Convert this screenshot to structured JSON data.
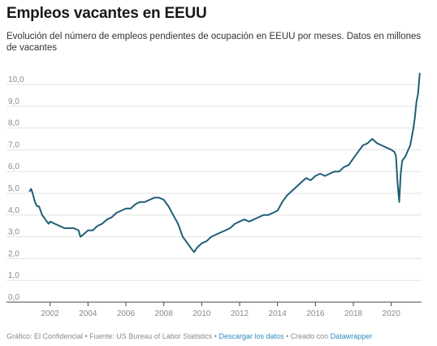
{
  "title": "Empleos vacantes en EEUU",
  "subtitle": "Evolución del número de empleos pendientes de ocupación en EEUU por meses. Datos en millones de vacantes",
  "footer": {
    "credit": "Gráfico: El Confidencial",
    "sep1": " • ",
    "source": "Fuente: US Bureau of Labor Statistics",
    "sep2": " • ",
    "download": "Descargar los datos",
    "sep3": " • ",
    "created": "Creado con ",
    "tool": "Datawrapper"
  },
  "chart_data": {
    "type": "line",
    "title": "Empleos vacantes en EEUU",
    "xlabel": "",
    "ylabel": "",
    "xlim": [
      2000.9,
      2021.6
    ],
    "ylim": [
      0,
      10
    ],
    "y_ticks": [
      "0,0",
      "1,0",
      "2,0",
      "3,0",
      "4,0",
      "5,0",
      "6,0",
      "7,0",
      "8,0",
      "9,0",
      "10,0"
    ],
    "y_tick_values": [
      0,
      1,
      2,
      3,
      4,
      5,
      6,
      7,
      8,
      9,
      10
    ],
    "x_ticks": [
      "2002",
      "2004",
      "2006",
      "2008",
      "2010",
      "2012",
      "2014",
      "2016",
      "2018",
      "2020"
    ],
    "x_tick_values": [
      2002,
      2004,
      2006,
      2008,
      2010,
      2012,
      2014,
      2016,
      2018,
      2020
    ],
    "grid": true,
    "line_color": "#1f5f77",
    "series": [
      {
        "x": [
          2000.92,
          2001.0,
          2001.08,
          2001.17,
          2001.25,
          2001.33,
          2001.42,
          2001.5,
          2001.58,
          2001.67,
          2001.75,
          2001.83,
          2001.92,
          2002.0,
          2002.25,
          2002.5,
          2002.75,
          2003.0,
          2003.25,
          2003.5,
          2003.6,
          2003.75,
          2004.0,
          2004.25,
          2004.5,
          2004.75,
          2005.0,
          2005.25,
          2005.5,
          2005.75,
          2006.0,
          2006.25,
          2006.5,
          2006.75,
          2007.0,
          2007.25,
          2007.5,
          2007.75,
          2008.0,
          2008.25,
          2008.5,
          2008.75,
          2009.0,
          2009.25,
          2009.5,
          2009.6,
          2009.75,
          2010.0,
          2010.25,
          2010.5,
          2010.75,
          2011.0,
          2011.25,
          2011.5,
          2011.75,
          2012.0,
          2012.25,
          2012.5,
          2012.75,
          2013.0,
          2013.25,
          2013.5,
          2013.75,
          2014.0,
          2014.25,
          2014.5,
          2014.75,
          2015.0,
          2015.25,
          2015.5,
          2015.75,
          2016.0,
          2016.25,
          2016.5,
          2016.75,
          2017.0,
          2017.25,
          2017.5,
          2017.75,
          2018.0,
          2018.25,
          2018.5,
          2018.75,
          2019.0,
          2019.25,
          2019.5,
          2019.75,
          2020.0,
          2020.17,
          2020.25,
          2020.33,
          2020.42,
          2020.5,
          2020.58,
          2020.75,
          2021.0,
          2021.17,
          2021.25,
          2021.33,
          2021.42,
          2021.5
        ],
        "values": [
          5.1,
          5.2,
          5.0,
          4.7,
          4.5,
          4.4,
          4.4,
          4.2,
          4.0,
          3.9,
          3.8,
          3.7,
          3.6,
          3.7,
          3.6,
          3.5,
          3.4,
          3.4,
          3.4,
          3.3,
          3.0,
          3.1,
          3.3,
          3.3,
          3.5,
          3.6,
          3.8,
          3.9,
          4.1,
          4.2,
          4.3,
          4.3,
          4.5,
          4.6,
          4.6,
          4.7,
          4.8,
          4.8,
          4.7,
          4.4,
          4.0,
          3.6,
          3.0,
          2.7,
          2.4,
          2.3,
          2.5,
          2.7,
          2.8,
          3.0,
          3.1,
          3.2,
          3.3,
          3.4,
          3.6,
          3.7,
          3.8,
          3.7,
          3.8,
          3.9,
          4.0,
          4.0,
          4.1,
          4.2,
          4.6,
          4.9,
          5.1,
          5.3,
          5.5,
          5.7,
          5.6,
          5.8,
          5.9,
          5.8,
          5.9,
          6.0,
          6.0,
          6.2,
          6.3,
          6.6,
          6.9,
          7.2,
          7.3,
          7.5,
          7.3,
          7.2,
          7.1,
          7.0,
          6.9,
          6.7,
          5.5,
          4.6,
          5.9,
          6.5,
          6.7,
          7.2,
          8.0,
          8.5,
          9.2,
          9.6,
          10.5
        ]
      }
    ]
  }
}
